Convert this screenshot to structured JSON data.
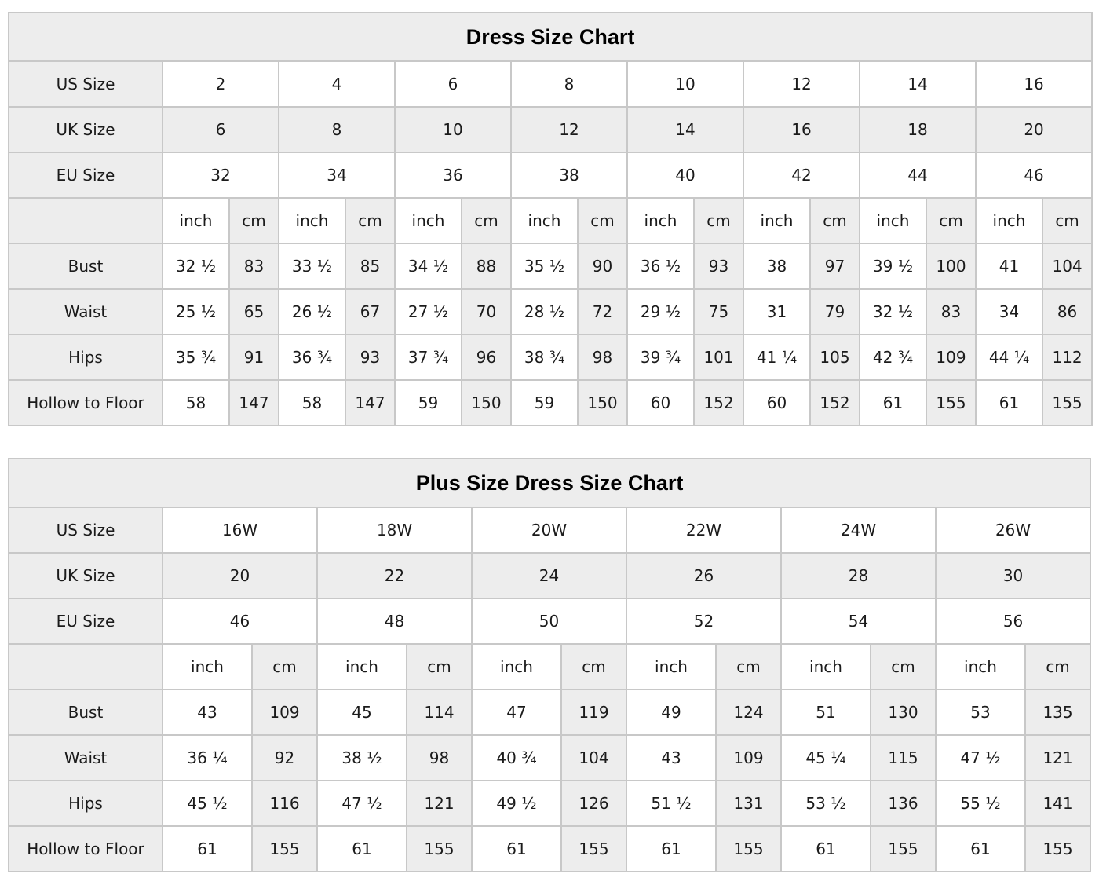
{
  "colors": {
    "cell_shade": "#ededed",
    "cell_border": "#c8c8c8",
    "text": "#1b1b1b"
  },
  "standard_chart": {
    "title": "Dress Size Chart",
    "units": {
      "inch": "inch",
      "cm": "cm"
    },
    "size_rows": [
      {
        "label": "US Size",
        "values": [
          "2",
          "4",
          "6",
          "8",
          "10",
          "12",
          "14",
          "16"
        ]
      },
      {
        "label": "UK Size",
        "values": [
          "6",
          "8",
          "10",
          "12",
          "14",
          "16",
          "18",
          "20"
        ]
      },
      {
        "label": "EU Size",
        "values": [
          "32",
          "34",
          "36",
          "38",
          "40",
          "42",
          "44",
          "46"
        ]
      }
    ],
    "measurement_rows": [
      {
        "label": "Bust",
        "inch": [
          "32 ½",
          "33 ½",
          "34 ½",
          "35 ½",
          "36 ½",
          "38",
          "39 ½",
          "41"
        ],
        "cm": [
          "83",
          "85",
          "88",
          "90",
          "93",
          "97",
          "100",
          "104"
        ]
      },
      {
        "label": "Waist",
        "inch": [
          "25 ½",
          "26 ½",
          "27 ½",
          "28 ½",
          "29 ½",
          "31",
          "32 ½",
          "34"
        ],
        "cm": [
          "65",
          "67",
          "70",
          "72",
          "75",
          "79",
          "83",
          "86"
        ]
      },
      {
        "label": "Hips",
        "inch": [
          "35 ¾",
          "36 ¾",
          "37 ¾",
          "38 ¾",
          "39 ¾",
          "41 ¼",
          "42 ¾",
          "44 ¼"
        ],
        "cm": [
          "91",
          "93",
          "96",
          "98",
          "101",
          "105",
          "109",
          "112"
        ]
      },
      {
        "label": "Hollow to Floor",
        "inch": [
          "58",
          "58",
          "59",
          "59",
          "60",
          "60",
          "61",
          "61"
        ],
        "cm": [
          "147",
          "147",
          "150",
          "150",
          "152",
          "152",
          "155",
          "155"
        ]
      }
    ]
  },
  "plus_chart": {
    "title": "Plus Size Dress Size Chart",
    "units": {
      "inch": "inch",
      "cm": "cm"
    },
    "size_rows": [
      {
        "label": "US Size",
        "values": [
          "16W",
          "18W",
          "20W",
          "22W",
          "24W",
          "26W"
        ]
      },
      {
        "label": "UK Size",
        "values": [
          "20",
          "22",
          "24",
          "26",
          "28",
          "30"
        ]
      },
      {
        "label": "EU Size",
        "values": [
          "46",
          "48",
          "50",
          "52",
          "54",
          "56"
        ]
      }
    ],
    "measurement_rows": [
      {
        "label": "Bust",
        "inch": [
          "43",
          "45",
          "47",
          "49",
          "51",
          "53"
        ],
        "cm": [
          "109",
          "114",
          "119",
          "124",
          "130",
          "135"
        ]
      },
      {
        "label": "Waist",
        "inch": [
          "36 ¼",
          "38 ½",
          "40 ¾",
          "43",
          "45 ¼",
          "47 ½"
        ],
        "cm": [
          "92",
          "98",
          "104",
          "109",
          "115",
          "121"
        ]
      },
      {
        "label": "Hips",
        "inch": [
          "45 ½",
          "47 ½",
          "49 ½",
          "51 ½",
          "53 ½",
          "55 ½"
        ],
        "cm": [
          "116",
          "121",
          "126",
          "131",
          "136",
          "141"
        ]
      },
      {
        "label": "Hollow to Floor",
        "inch": [
          "61",
          "61",
          "61",
          "61",
          "61",
          "61"
        ],
        "cm": [
          "155",
          "155",
          "155",
          "155",
          "155",
          "155"
        ]
      }
    ]
  }
}
